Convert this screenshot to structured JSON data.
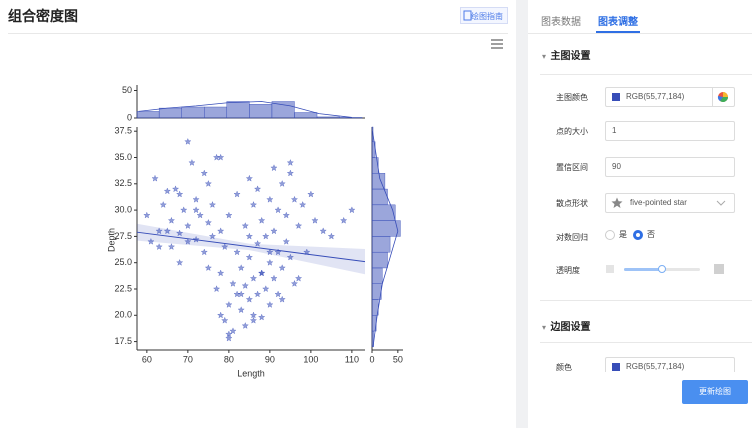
{
  "header": {
    "title": "组合密度图",
    "guide_button": "绘图指南"
  },
  "tabs": [
    "图表数据",
    "图表调整"
  ],
  "settings": {
    "main_section": "主图设置",
    "color_row": {
      "label": "主图颜色",
      "value": "RGB(55,77,184)"
    },
    "size_row": {
      "label": "点的大小",
      "value": "1"
    },
    "ci_row": {
      "label": "置信区间",
      "value": "90"
    },
    "shape_row": {
      "label": "散点形状",
      "value": "five-pointed star"
    },
    "log_row": {
      "label": "对数回归",
      "options": [
        "是",
        "否"
      ],
      "selected": 1
    },
    "opacity_row": {
      "label": "透明度",
      "value": 0.5
    },
    "margin_section": "边图设置",
    "margin_color_row": {
      "label": "颜色",
      "value": "RGB(55,77,184)"
    }
  },
  "update_button": "更新绘图",
  "chart_data": {
    "type": "jointplot",
    "x_label": "Length",
    "y_label": "Depth",
    "color": "#374db8",
    "xlim": [
      57.6,
      113.2
    ],
    "ylim": [
      16.7,
      37.9
    ],
    "xticks": [
      60,
      70,
      80,
      90,
      100,
      110
    ],
    "yticks": [
      17.5,
      {
        "value": 20,
        "label": "20.0"
      },
      22.5,
      {
        "value": 25,
        "label": "25.0"
      },
      27.5,
      {
        "value": 30,
        "label": "30.0"
      },
      32.5,
      {
        "value": 35,
        "label": "35.0"
      },
      37.5
    ],
    "x": [
      60,
      61,
      62,
      63,
      64,
      65,
      66,
      66,
      67,
      68,
      68,
      69,
      70,
      70,
      71,
      72,
      72,
      73,
      74,
      74,
      75,
      75,
      76,
      76,
      77,
      77,
      78,
      78,
      78,
      79,
      79,
      80,
      80,
      80,
      81,
      81,
      82,
      82,
      82,
      83,
      83,
      84,
      84,
      84,
      85,
      85,
      85,
      86,
      86,
      86,
      87,
      87,
      87,
      88,
      88,
      88,
      89,
      89,
      90,
      90,
      90,
      91,
      91,
      91,
      92,
      92,
      92,
      93,
      93,
      94,
      94,
      95,
      95,
      96,
      96,
      97,
      98,
      99,
      100,
      101,
      103,
      105,
      108,
      110,
      70,
      72,
      63,
      65,
      80,
      83,
      86,
      88,
      90,
      93,
      75,
      78,
      95,
      97,
      68,
      85
    ],
    "y": [
      29.5,
      27.0,
      33.0,
      28.0,
      30.5,
      31.8,
      26.5,
      29.0,
      32.0,
      27.8,
      25.0,
      30.0,
      36.5,
      28.5,
      34.5,
      27.2,
      31.0,
      29.5,
      26.0,
      33.5,
      28.8,
      24.5,
      30.5,
      27.5,
      35.0,
      22.5,
      20.0,
      28.0,
      24.0,
      19.5,
      26.5,
      21.0,
      17.8,
      29.5,
      23.0,
      18.5,
      22.0,
      26.0,
      31.5,
      20.5,
      24.5,
      19.0,
      22.8,
      28.5,
      21.5,
      25.5,
      33.0,
      23.5,
      20.0,
      30.5,
      22.0,
      26.8,
      32.0,
      24.0,
      19.8,
      29.0,
      22.5,
      27.5,
      31.0,
      25.0,
      21.0,
      34.0,
      23.5,
      28.0,
      30.0,
      26.0,
      22.0,
      32.5,
      24.5,
      29.5,
      27.0,
      33.5,
      25.5,
      31.0,
      23.0,
      28.5,
      30.5,
      26.0,
      31.5,
      29.0,
      28.0,
      27.5,
      29.0,
      30.0,
      27.0,
      30.0,
      26.5,
      28.0,
      18.2,
      22.0,
      19.5,
      24.0,
      26.0,
      21.5,
      32.5,
      35.0,
      34.5,
      23.5,
      31.5,
      27.5
    ],
    "regression": {
      "x": [
        57.6,
        113.2
      ],
      "y": [
        27.9,
        25.1
      ]
    },
    "confidence_band": {
      "x": [
        57.6,
        85,
        113.2
      ],
      "upper": [
        28.7,
        26.8,
        26.3
      ],
      "lower": [
        27.1,
        26.2,
        23.9
      ]
    },
    "top_hist": {
      "bins": [
        57.5,
        63,
        68.5,
        74,
        79.5,
        85,
        90.5,
        96,
        101.5,
        107,
        112.5
      ],
      "counts": [
        12,
        18,
        20,
        20,
        30,
        25,
        30,
        10,
        2,
        1
      ],
      "ylim": [
        0,
        60
      ],
      "yticks": [
        0,
        50
      ],
      "kde": {
        "x": [
          58,
          65,
          72,
          80,
          88,
          95,
          102,
          110
        ],
        "y": [
          12,
          18,
          22,
          28,
          30,
          22,
          8,
          1
        ]
      }
    },
    "right_hist": {
      "bins": [
        17,
        18.5,
        20,
        21.5,
        23,
        24.5,
        26,
        27.5,
        29,
        30.5,
        32,
        33.5,
        35,
        36.5,
        38
      ],
      "counts": [
        3,
        8,
        12,
        18,
        20,
        30,
        35,
        55,
        45,
        30,
        25,
        12,
        6,
        2
      ],
      "xlim": [
        0,
        60
      ],
      "xticks": [
        0,
        50
      ],
      "kde": {
        "y": [
          17,
          20,
          23,
          26,
          28,
          30,
          33,
          37.5
        ],
        "x": [
          2,
          10,
          20,
          38,
          50,
          40,
          15,
          1
        ]
      }
    }
  }
}
